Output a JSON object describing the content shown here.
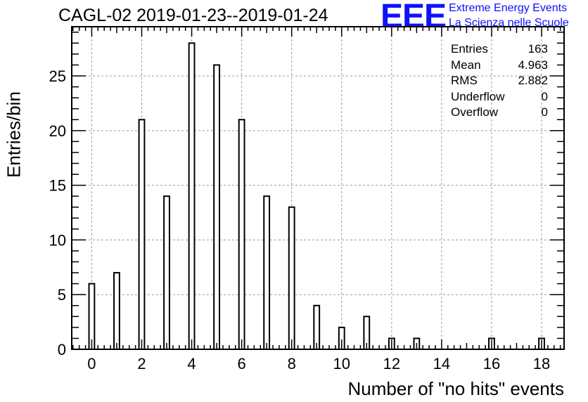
{
  "header": {
    "title": "CAGL-02 2019-01-23--2019-01-24"
  },
  "logo": {
    "mark": "EEE",
    "line1": "Extreme Energy Events",
    "line2": "La Scienza nelle Scuole",
    "color": "#1010ff"
  },
  "stats": [
    {
      "label": "Entries",
      "value": "163"
    },
    {
      "label": "Mean",
      "value": "4.963"
    },
    {
      "label": "RMS",
      "value": "2.882"
    },
    {
      "label": "Underflow",
      "value": "0"
    },
    {
      "label": "Overflow",
      "value": "0"
    }
  ],
  "chart_data": {
    "type": "bar",
    "title": "CAGL-02 2019-01-23--2019-01-24",
    "xlabel": "Number of \"no hits\" events",
    "ylabel": "Entries/bin",
    "xlim": [
      -0.8,
      18.9
    ],
    "ylim": [
      0,
      29.5
    ],
    "x_ticks": [
      0,
      2,
      4,
      6,
      8,
      10,
      12,
      14,
      16,
      18
    ],
    "y_ticks": [
      0,
      5,
      10,
      15,
      20,
      25
    ],
    "grid": true,
    "bar_color": "#ffffff",
    "edge_color": "#000000",
    "x": [
      0,
      1,
      2,
      3,
      4,
      5,
      6,
      7,
      8,
      9,
      10,
      11,
      12,
      13,
      16,
      18
    ],
    "values": [
      6,
      7,
      21,
      14,
      28,
      26,
      21,
      14,
      13,
      4,
      2,
      3,
      1,
      1,
      1,
      1
    ]
  }
}
